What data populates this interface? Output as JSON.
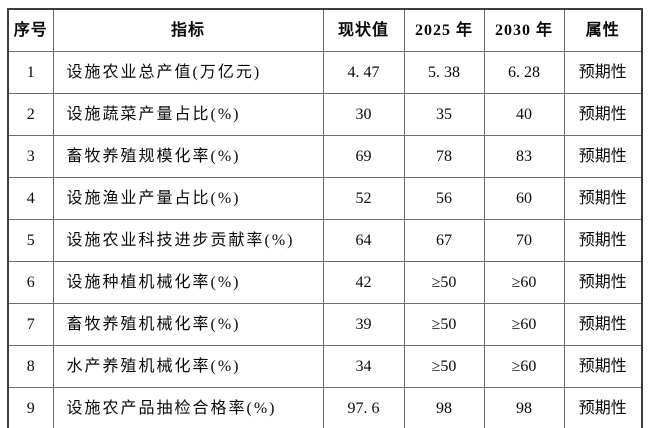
{
  "page": {
    "background": "#ffffff",
    "outer_border_color": "#3d3d3d",
    "inner_border_color": "#6e6e6e",
    "text_color": "#0a0a0a"
  },
  "table": {
    "headers": [
      "序号",
      "指标",
      "现状值",
      "2025 年",
      "2030 年",
      "属性"
    ],
    "rows": [
      [
        "1",
        "设施农业总产值(万亿元)",
        "4. 47",
        "5. 38",
        "6. 28",
        "预期性"
      ],
      [
        "2",
        "设施蔬菜产量占比(%)",
        "30",
        "35",
        "40",
        "预期性"
      ],
      [
        "3",
        "畜牧养殖规模化率(%)",
        "69",
        "78",
        "83",
        "预期性"
      ],
      [
        "4",
        "设施渔业产量占比(%)",
        "52",
        "56",
        "60",
        "预期性"
      ],
      [
        "5",
        "设施农业科技进步贡献率(%)",
        "64",
        "67",
        "70",
        "预期性"
      ],
      [
        "6",
        "设施种植机械化率(%)",
        "42",
        "≥50",
        "≥60",
        "预期性"
      ],
      [
        "7",
        "畜牧养殖机械化率(%)",
        "39",
        "≥50",
        "≥60",
        "预期性"
      ],
      [
        "8",
        "水产养殖机械化率(%)",
        "34",
        "≥50",
        "≥60",
        "预期性"
      ],
      [
        "9",
        "设施农产品抽检合格率(%)",
        "97. 6",
        "98",
        "98",
        "预期性"
      ]
    ]
  }
}
